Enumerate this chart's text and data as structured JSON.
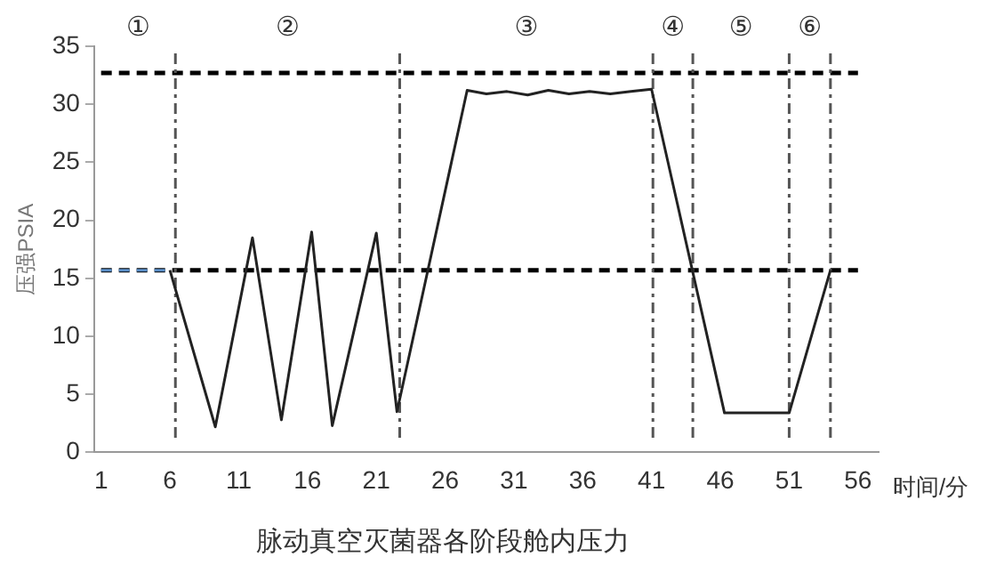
{
  "chart_data": {
    "type": "line",
    "title": "脉动真空灭菌器各阶段舱内压力",
    "xlabel": "时间/分",
    "ylabel": "压强PSIA",
    "xlim": [
      0.5,
      57.5
    ],
    "xticks": [
      1,
      6,
      11,
      16,
      21,
      26,
      31,
      36,
      41,
      46,
      51,
      56
    ],
    "ylim": [
      0,
      35
    ],
    "yticks": [
      0,
      5,
      10,
      15,
      20,
      25,
      30,
      35
    ],
    "grid": false,
    "legend": false,
    "marker": "none",
    "series": [
      {
        "color": "#5b8fc9",
        "line_style": "dashed",
        "x": [
          1,
          6
        ],
        "values": [
          15.7,
          15.7
        ]
      },
      {
        "color": "#222222",
        "line_style": "solid",
        "x": [
          6,
          9.3,
          12,
          14.1,
          16.3,
          17.8,
          21,
          22.5,
          27.6,
          29,
          30.5,
          32,
          33.5,
          35,
          36.5,
          38,
          39.5,
          41,
          46.3,
          51,
          54
        ],
        "values": [
          15.7,
          2.2,
          18.5,
          2.8,
          19,
          2.3,
          18.9,
          3.5,
          31.2,
          30.9,
          31.1,
          30.8,
          31.2,
          30.9,
          31.1,
          30.9,
          31.1,
          31.3,
          3.4,
          3.4,
          15.7
        ]
      }
    ],
    "ref_lines": [
      {
        "axis": "y",
        "value": 32.7,
        "color": "#000000",
        "line_style": "dashed"
      },
      {
        "axis": "y",
        "value": 15.7,
        "color": "#000000",
        "line_style": "dashed"
      },
      {
        "axis": "x",
        "value": 6.4,
        "color": "#555555",
        "line_style": "dashdot"
      },
      {
        "axis": "x",
        "value": 22.7,
        "color": "#555555",
        "line_style": "dashdot"
      },
      {
        "axis": "x",
        "value": 41.1,
        "color": "#555555",
        "line_style": "dashdot"
      },
      {
        "axis": "x",
        "value": 44,
        "color": "#555555",
        "line_style": "dashdot"
      },
      {
        "axis": "x",
        "value": 51,
        "color": "#555555",
        "line_style": "dashdot"
      },
      {
        "axis": "x",
        "value": 54,
        "color": "#555555",
        "line_style": "dashdot"
      }
    ],
    "annotations": [
      "①",
      "②",
      "③",
      "④",
      "⑤",
      "⑥"
    ]
  }
}
